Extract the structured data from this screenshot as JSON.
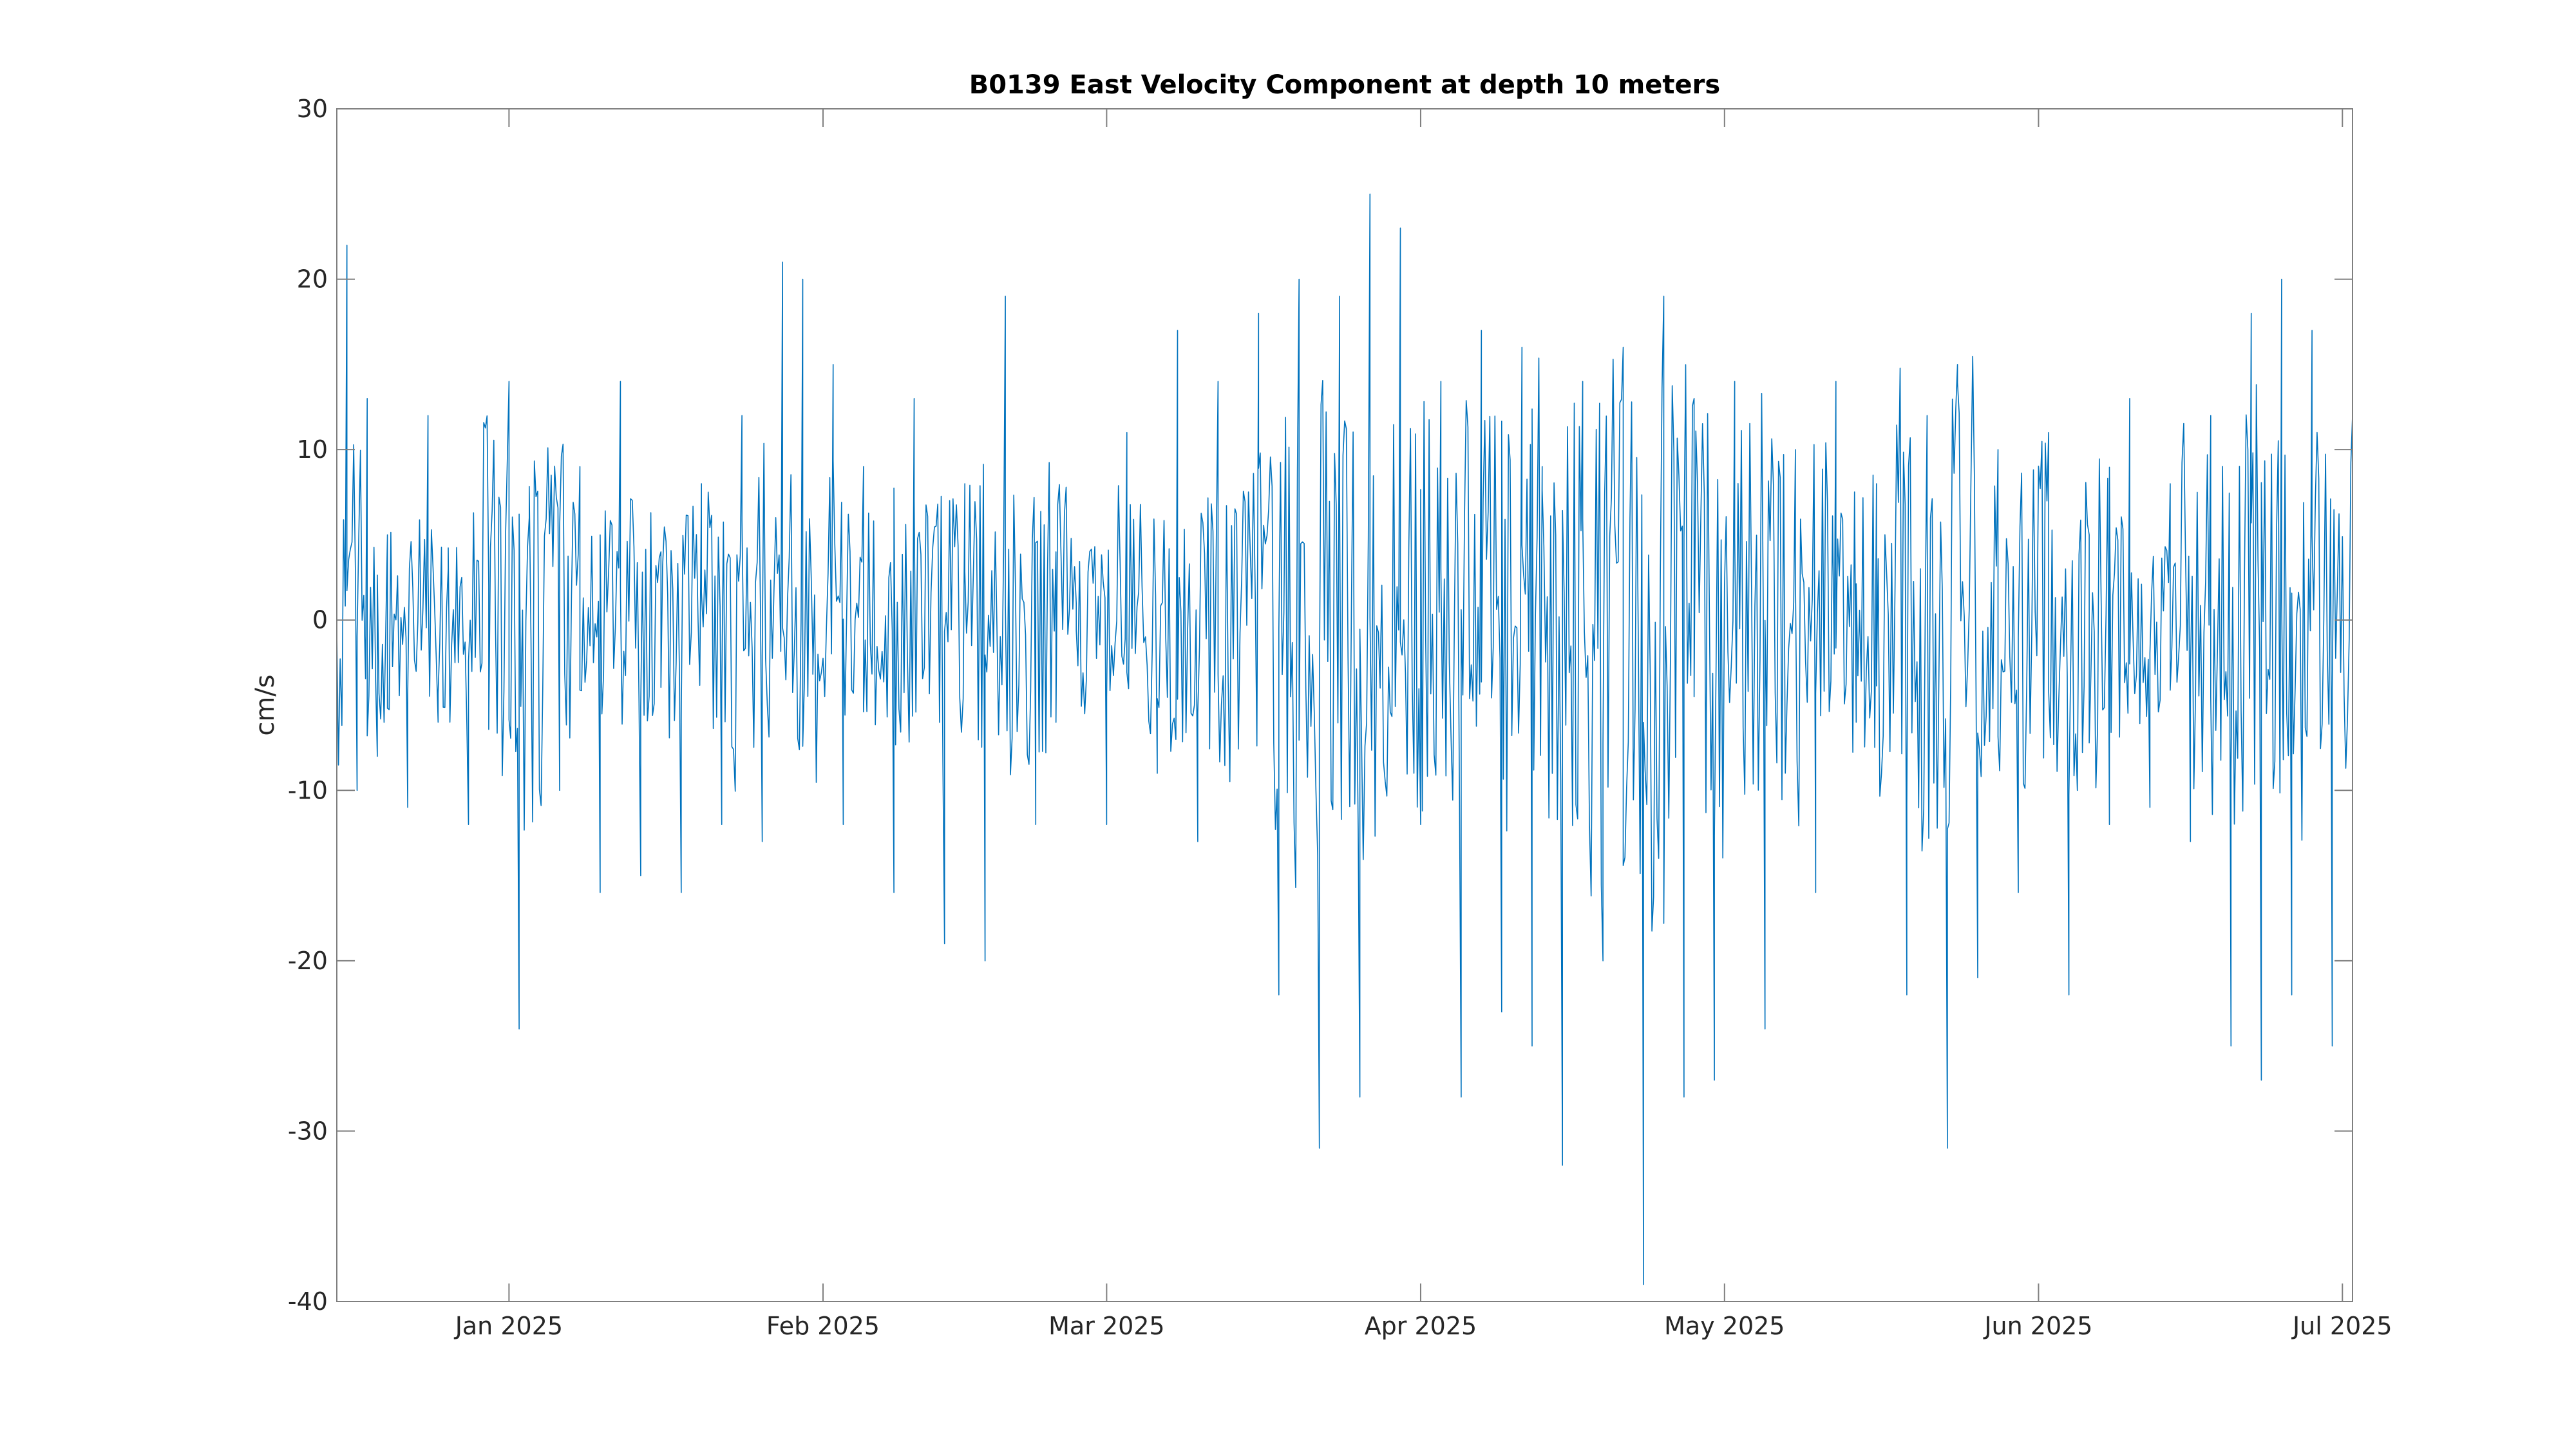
{
  "chart_data": {
    "type": "line",
    "title": "B0139 East Velocity Component at depth 10 meters",
    "xlabel": "",
    "ylabel": "cm/s",
    "x_range": [
      "2024-12-15",
      "2025-07-02"
    ],
    "ylim": [
      -40,
      30
    ],
    "y_ticks": [
      {
        "value": 30,
        "label": "30"
      },
      {
        "value": 20,
        "label": "20"
      },
      {
        "value": 10,
        "label": "10"
      },
      {
        "value": 0,
        "label": "0"
      },
      {
        "value": -10,
        "label": "-10"
      },
      {
        "value": -20,
        "label": "-20"
      },
      {
        "value": -30,
        "label": "-30"
      },
      {
        "value": -40,
        "label": "-40"
      }
    ],
    "x_ticks": [
      {
        "value": "2025-01-01",
        "label": "Jan 2025"
      },
      {
        "value": "2025-02-01",
        "label": "Feb 2025"
      },
      {
        "value": "2025-03-01",
        "label": "Mar 2025"
      },
      {
        "value": "2025-04-01",
        "label": "Apr 2025"
      },
      {
        "value": "2025-05-01",
        "label": "May 2025"
      },
      {
        "value": "2025-06-01",
        "label": "Jun 2025"
      },
      {
        "value": "2025-07-01",
        "label": "Jul 2025"
      }
    ],
    "grid": false,
    "legend": "none",
    "series": [
      {
        "color": "#0072BD",
        "x": [
          "2024-12-15",
          "2024-12-16",
          "2024-12-17",
          "2024-12-18",
          "2024-12-19",
          "2024-12-20",
          "2024-12-22",
          "2024-12-24",
          "2024-12-25",
          "2024-12-26",
          "2024-12-28",
          "2024-12-30",
          "2025-01-01",
          "2025-01-02",
          "2025-01-03",
          "2025-01-06",
          "2025-01-08",
          "2025-01-10",
          "2025-01-12",
          "2025-01-14",
          "2025-01-16",
          "2025-01-18",
          "2025-01-20",
          "2025-01-22",
          "2025-01-24",
          "2025-01-26",
          "2025-01-28",
          "2025-01-29",
          "2025-01-30",
          "2025-01-31",
          "2025-02-02",
          "2025-02-03",
          "2025-02-05",
          "2025-02-08",
          "2025-02-10",
          "2025-02-13",
          "2025-02-15",
          "2025-02-17",
          "2025-02-19",
          "2025-02-22",
          "2025-02-24",
          "2025-02-26",
          "2025-03-01",
          "2025-03-03",
          "2025-03-06",
          "2025-03-08",
          "2025-03-10",
          "2025-03-12",
          "2025-03-14",
          "2025-03-16",
          "2025-03-18",
          "2025-03-20",
          "2025-03-22",
          "2025-03-24",
          "2025-03-26",
          "2025-03-27",
          "2025-03-28",
          "2025-03-30",
          "2025-04-01",
          "2025-04-03",
          "2025-04-05",
          "2025-04-07",
          "2025-04-09",
          "2025-04-11",
          "2025-04-12",
          "2025-04-13",
          "2025-04-15",
          "2025-04-17",
          "2025-04-19",
          "2025-04-21",
          "2025-04-23",
          "2025-04-25",
          "2025-04-27",
          "2025-04-28",
          "2025-04-30",
          "2025-05-02",
          "2025-05-05",
          "2025-05-08",
          "2025-05-10",
          "2025-05-12",
          "2025-05-14",
          "2025-05-16",
          "2025-05-19",
          "2025-05-21",
          "2025-05-23",
          "2025-05-24",
          "2025-05-26",
          "2025-05-28",
          "2025-05-30",
          "2025-06-02",
          "2025-06-04",
          "2025-06-06",
          "2025-06-08",
          "2025-06-10",
          "2025-06-12",
          "2025-06-14",
          "2025-06-16",
          "2025-06-18",
          "2025-06-20",
          "2025-06-22",
          "2025-06-23",
          "2025-06-25",
          "2025-06-26",
          "2025-06-28",
          "2025-06-30",
          "2025-07-02"
        ],
        "values": [
          0,
          22,
          -10,
          13,
          -8,
          5,
          -11,
          12,
          -6,
          3,
          -12,
          2,
          14,
          -24,
          6,
          -10,
          9,
          -16,
          14,
          -15,
          4,
          -16,
          8,
          -12,
          12,
          -13,
          21,
          -4,
          20,
          -2,
          15,
          -12,
          9,
          -16,
          13,
          -19,
          8,
          -20,
          19,
          -12,
          4,
          1,
          -12,
          11,
          -9,
          17,
          -13,
          14,
          -7,
          18,
          -22,
          20,
          -31,
          19,
          -28,
          25,
          -4,
          23,
          -12,
          14,
          -28,
          17,
          -23,
          16,
          -25,
          9,
          -32,
          14,
          -20,
          16,
          -39,
          19,
          -28,
          13,
          -27,
          14,
          -24,
          10,
          -16,
          14,
          -6,
          8,
          -22,
          12,
          -31,
          15,
          -21,
          10,
          -16,
          11,
          -22,
          5,
          -12,
          13,
          -11,
          8,
          -13,
          12,
          -25,
          18,
          -27,
          20,
          -22,
          17,
          -25,
          12
        ]
      }
    ]
  }
}
